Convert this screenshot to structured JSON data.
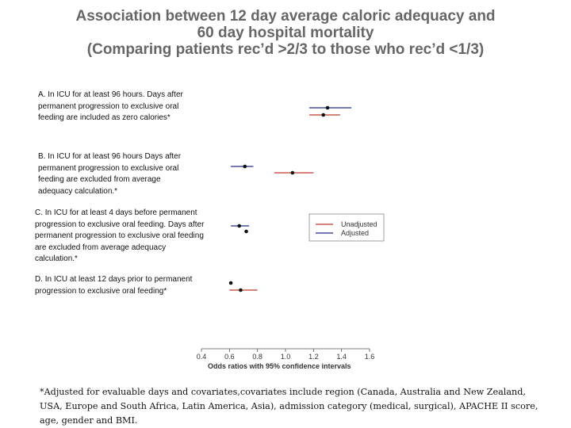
{
  "title_lines": [
    "Association between 12 day average caloric adequacy and",
    "60 day hospital mortality",
    "(Comparing patients rec’d >2/3 to those who rec’d <1/3)"
  ],
  "panel_labels": {
    "A": "A. In ICU for at least 96 hours. Days after permanent progression to exclusive oral feeding are included as zero calories*",
    "B": "B. In ICU for at least 96 hours Days after permanent progression to exclusive oral feeding are excluded from average adequacy calculation.*",
    "C": "C. In ICU for at least 4 days before permanent progression to exclusive oral feeding. Days after permanent progression to exclusive oral feeding are excluded from average adequacy calculation.*",
    "D": "D. In ICU at least 12 days prior to permanent progression to exclusive oral feeding*"
  },
  "footnote": "*Adjusted for evaluable days and covariates,covariates include region (Canada, Australia and New Zealand, USA, Europe and South Africa, Latin America, Asia), admission category (medical, surgical), APACHE II score, age, gender and BMI.",
  "colors": {
    "unadjusted": "#c0392b",
    "adjusted": "#1f2a8a",
    "point": "#111111",
    "axis": "#555555"
  },
  "chart_data": {
    "type": "forest",
    "title": "Association between 12 day average caloric adequacy and 60 day hospital mortality",
    "xlabel": "Odds ratios with 95% confidence intervals",
    "xlim": [
      0.4,
      1.6
    ],
    "ticks": [
      "0.4",
      "0.6",
      "0.8",
      "1.0",
      "1.2",
      "1.4",
      "1.6"
    ],
    "legend": [
      "Unadjusted",
      "Adjusted"
    ],
    "legend_position": "right",
    "rows": [
      {
        "panel": "A",
        "series": "Adjusted",
        "or": 1.3,
        "lo": 1.17,
        "hi": 1.47
      },
      {
        "panel": "A",
        "series": "Unadjusted",
        "or": 1.27,
        "lo": 1.17,
        "hi": 1.39
      },
      {
        "panel": "B",
        "series": "Adjusted",
        "or": 0.71,
        "lo": 0.61,
        "hi": 0.77
      },
      {
        "panel": "B",
        "series": "Unadjusted",
        "or": 1.05,
        "lo": 0.92,
        "hi": 1.2
      },
      {
        "panel": "C",
        "series": "Adjusted",
        "or": 0.67,
        "lo": 0.61,
        "hi": 0.74
      },
      {
        "panel": "C",
        "series": "Unadjusted",
        "or": 0.72,
        "lo": 0.72,
        "hi": 0.72
      },
      {
        "panel": "D",
        "series": "Adjusted",
        "or": 0.61,
        "lo": 0.61,
        "hi": 0.61
      },
      {
        "panel": "D",
        "series": "Unadjusted",
        "or": 0.68,
        "lo": 0.6,
        "hi": 0.8
      }
    ]
  }
}
